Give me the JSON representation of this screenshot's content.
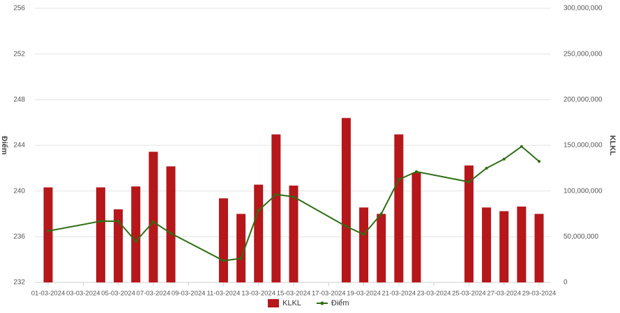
{
  "chart_data": {
    "type": "combo",
    "y_label": "Điểm",
    "y2_label": "KLKL",
    "x": [
      "01-03-2024",
      "04-03-2024",
      "05-03-2024",
      "06-03-2024",
      "07-03-2024",
      "08-03-2024",
      "11-03-2024",
      "12-03-2024",
      "13-03-2024",
      "14-03-2024",
      "15-03-2024",
      "18-03-2024",
      "19-03-2024",
      "20-03-2024",
      "21-03-2024",
      "22-03-2024",
      "25-03-2024",
      "26-03-2024",
      "27-03-2024",
      "28-03-2024",
      "29-03-2024"
    ],
    "xticks": [
      "01-03-2024",
      "03-03-2024",
      "05-03-2024",
      "07-03-2024",
      "09-03-2024",
      "11-03-2024",
      "13-03-2024",
      "15-03-2024",
      "17-03-2024",
      "19-03-2024",
      "21-03-2024",
      "23-03-2024",
      "25-03-2024",
      "27-03-2024",
      "29-03-2024"
    ],
    "ylim": [
      232,
      256
    ],
    "yticks": [
      232,
      236,
      240,
      244,
      248,
      252,
      256
    ],
    "y2lim": [
      0,
      300000000
    ],
    "y2ticks": [
      0,
      {
        "value": 50000000,
        "label": "50,000,000"
      },
      {
        "value": 100000000,
        "label": "100,000,000"
      },
      {
        "value": 150000000,
        "label": "150,000,000"
      },
      {
        "value": 200000000,
        "label": "200,000,000"
      },
      {
        "value": 250000000,
        "label": "250,000,000"
      },
      {
        "value": 300000000,
        "label": "300,000,000"
      }
    ],
    "grid": true,
    "legend": "bottom",
    "series": [
      {
        "name": "KLKL",
        "type": "bar",
        "axis": "y2",
        "color": "#b5171b",
        "values": [
          104000000,
          104000000,
          80000000,
          105000000,
          143000000,
          127000000,
          92000000,
          75000000,
          107000000,
          162000000,
          106000000,
          180000000,
          82000000,
          75000000,
          162000000,
          120000000,
          128000000,
          82000000,
          78000000,
          83000000,
          75000000
        ]
      },
      {
        "name": "Điểm",
        "type": "line",
        "color": "#2e6e14",
        "values": [
          236.5,
          237.36,
          237.36,
          235.6,
          237.3,
          236.3,
          233.9,
          234.1,
          238.3,
          239.7,
          239.5,
          236.9,
          236.2,
          238.0,
          241.0,
          241.7,
          240.8,
          242.0,
          242.8,
          243.9,
          242.6
        ]
      }
    ]
  }
}
